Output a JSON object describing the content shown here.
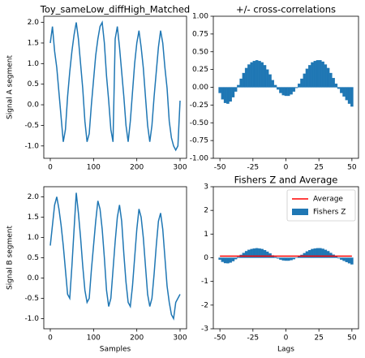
{
  "chart_data": [
    {
      "type": "line",
      "title": "Toy_sameLow_diffHigh_Matched",
      "ylabel": "Signal A segment",
      "color": "#1f77b4",
      "x": [
        0,
        5,
        10,
        15,
        20,
        25,
        30,
        35,
        40,
        45,
        50,
        55,
        60,
        65,
        70,
        75,
        80,
        85,
        90,
        95,
        100,
        105,
        110,
        115,
        120,
        125,
        130,
        135,
        140,
        145,
        150,
        155,
        160,
        165,
        170,
        175,
        180,
        185,
        190,
        195,
        200,
        205,
        210,
        215,
        220,
        225,
        230,
        235,
        240,
        245,
        250,
        255,
        260,
        265,
        270,
        275,
        280,
        285,
        290,
        295,
        300
      ],
      "values": [
        1.5,
        1.9,
        1.3,
        0.9,
        0.3,
        -0.3,
        -0.9,
        -0.6,
        0.2,
        0.8,
        1.3,
        1.7,
        2.0,
        1.6,
        1.0,
        0.4,
        -0.4,
        -0.9,
        -0.7,
        0.0,
        0.6,
        1.2,
        1.6,
        1.9,
        2.0,
        1.5,
        0.7,
        0.1,
        -0.6,
        -0.9,
        1.6,
        1.9,
        1.4,
        0.8,
        0.2,
        -0.5,
        -0.9,
        -0.4,
        0.3,
        1.0,
        1.5,
        1.8,
        1.4,
        0.9,
        0.2,
        -0.5,
        -0.9,
        -0.5,
        0.2,
        0.8,
        1.4,
        1.8,
        1.5,
        0.9,
        0.4,
        -0.4,
        -0.8,
        -1.0,
        -1.1,
        -1.0,
        0.1
      ],
      "xlim": [
        -15,
        315
      ],
      "xticks": [
        0,
        100,
        200,
        300
      ],
      "ylim": [
        -1.3,
        2.15
      ],
      "yticks": [
        {
          "value": -1,
          "label": "-1.0"
        },
        -0.5,
        {
          "value": 0,
          "label": "0.0"
        },
        0.5,
        {
          "value": 1,
          "label": "1.0"
        },
        1.5,
        {
          "value": 2,
          "label": "2.0"
        }
      ]
    },
    {
      "type": "bar",
      "title": "+/- cross-correlations",
      "color": "#1f77b4",
      "x": [
        -50,
        -48,
        -46,
        -44,
        -42,
        -40,
        -38,
        -36,
        -34,
        -32,
        -30,
        -28,
        -26,
        -24,
        -22,
        -20,
        -18,
        -16,
        -14,
        -12,
        -10,
        -8,
        -6,
        -4,
        -2,
        0,
        2,
        4,
        6,
        8,
        10,
        12,
        14,
        16,
        18,
        20,
        22,
        24,
        26,
        28,
        30,
        32,
        34,
        36,
        38,
        40,
        42,
        44,
        46,
        48,
        50
      ],
      "values": [
        -0.08,
        -0.17,
        -0.22,
        -0.23,
        -0.2,
        -0.14,
        -0.06,
        0.03,
        0.12,
        0.2,
        0.27,
        0.32,
        0.35,
        0.37,
        0.38,
        0.37,
        0.35,
        0.31,
        0.25,
        0.18,
        0.1,
        0.03,
        -0.03,
        -0.08,
        -0.11,
        -0.12,
        -0.12,
        -0.1,
        -0.06,
        -0.01,
        0.05,
        0.12,
        0.19,
        0.26,
        0.31,
        0.35,
        0.37,
        0.38,
        0.38,
        0.36,
        0.32,
        0.27,
        0.2,
        0.13,
        0.05,
        -0.02,
        -0.08,
        -0.13,
        -0.18,
        -0.23,
        -0.27
      ],
      "xlim": [
        -55,
        55
      ],
      "xticks": [
        -50,
        -25,
        0,
        25,
        50
      ],
      "ylim": [
        -1,
        1
      ],
      "yticks": [
        {
          "value": -1,
          "label": "-1.00"
        },
        -0.75,
        {
          "value": -0.5,
          "label": "-0.50"
        },
        -0.25,
        {
          "value": 0,
          "label": "0.00"
        },
        0.25,
        {
          "value": 0.5,
          "label": "0.50"
        },
        0.75,
        {
          "value": 1,
          "label": "1.00"
        }
      ]
    },
    {
      "type": "line",
      "ylabel": "Signal B segment",
      "xlabel": "Samples",
      "color": "#1f77b4",
      "x": [
        0,
        5,
        10,
        15,
        20,
        25,
        30,
        35,
        40,
        45,
        50,
        55,
        60,
        65,
        70,
        75,
        80,
        85,
        90,
        95,
        100,
        105,
        110,
        115,
        120,
        125,
        130,
        135,
        140,
        145,
        150,
        155,
        160,
        165,
        170,
        175,
        180,
        185,
        190,
        195,
        200,
        205,
        210,
        215,
        220,
        225,
        230,
        235,
        240,
        245,
        250,
        255,
        260,
        265,
        270,
        275,
        280,
        285,
        290,
        295,
        300
      ],
      "values": [
        0.8,
        1.3,
        1.8,
        2.0,
        1.7,
        1.3,
        0.8,
        0.2,
        -0.4,
        -0.5,
        0.3,
        1.2,
        2.1,
        1.6,
        1.0,
        0.3,
        -0.3,
        -0.6,
        -0.5,
        0.2,
        0.8,
        1.4,
        1.9,
        1.7,
        1.2,
        0.5,
        -0.3,
        -0.7,
        -0.5,
        0.2,
        0.9,
        1.5,
        1.8,
        1.4,
        0.6,
        -0.1,
        -0.6,
        -0.7,
        -0.2,
        0.5,
        1.2,
        1.7,
        1.5,
        1.0,
        0.3,
        -0.4,
        -0.7,
        -0.5,
        0.1,
        0.8,
        1.4,
        1.6,
        1.2,
        0.5,
        -0.2,
        -0.6,
        -0.9,
        -1.0,
        -0.6,
        -0.5,
        -0.4
      ],
      "xlim": [
        -15,
        315
      ],
      "xticks": [
        0,
        100,
        200,
        300
      ],
      "ylim": [
        -1.25,
        2.25
      ],
      "yticks": [
        {
          "value": -1,
          "label": "-1.0"
        },
        -0.5,
        {
          "value": 0,
          "label": "0.0"
        },
        0.5,
        {
          "value": 1,
          "label": "1.0"
        },
        1.5,
        {
          "value": 2,
          "label": "2.0"
        }
      ]
    },
    {
      "type": "bar",
      "title": "Fishers Z and Average",
      "xlabel": "Lags",
      "legend": "upper right",
      "x": [
        -50,
        -48,
        -46,
        -44,
        -42,
        -40,
        -38,
        -36,
        -34,
        -32,
        -30,
        -28,
        -26,
        -24,
        -22,
        -20,
        -18,
        -16,
        -14,
        -12,
        -10,
        -8,
        -6,
        -4,
        -2,
        0,
        2,
        4,
        6,
        8,
        10,
        12,
        14,
        16,
        18,
        20,
        22,
        24,
        26,
        28,
        30,
        32,
        34,
        36,
        38,
        40,
        42,
        44,
        46,
        48,
        50
      ],
      "series": [
        {
          "name": "Average",
          "color": "#ff0000",
          "value": 0.07
        },
        {
          "name": "Fishers Z",
          "color": "#1f77b4",
          "values": [
            -0.08,
            -0.172,
            -0.224,
            -0.234,
            -0.203,
            -0.141,
            -0.06,
            0.03,
            0.121,
            0.203,
            0.277,
            0.332,
            0.365,
            0.388,
            0.4,
            0.388,
            0.365,
            0.32,
            0.255,
            0.182,
            0.1,
            0.03,
            -0.03,
            -0.08,
            -0.11,
            -0.121,
            -0.121,
            -0.1,
            -0.06,
            -0.01,
            0.05,
            0.121,
            0.192,
            0.266,
            0.32,
            0.365,
            0.388,
            0.4,
            0.4,
            0.377,
            0.332,
            0.277,
            0.203,
            0.131,
            0.05,
            -0.02,
            -0.08,
            -0.131,
            -0.182,
            -0.234,
            -0.277
          ]
        }
      ],
      "xlim": [
        -55,
        55
      ],
      "xticks": [
        -50,
        -25,
        0,
        25,
        50
      ],
      "ylim": [
        -3,
        3
      ],
      "yticks": [
        -3,
        -2,
        -1,
        0,
        1,
        2,
        3
      ]
    }
  ]
}
